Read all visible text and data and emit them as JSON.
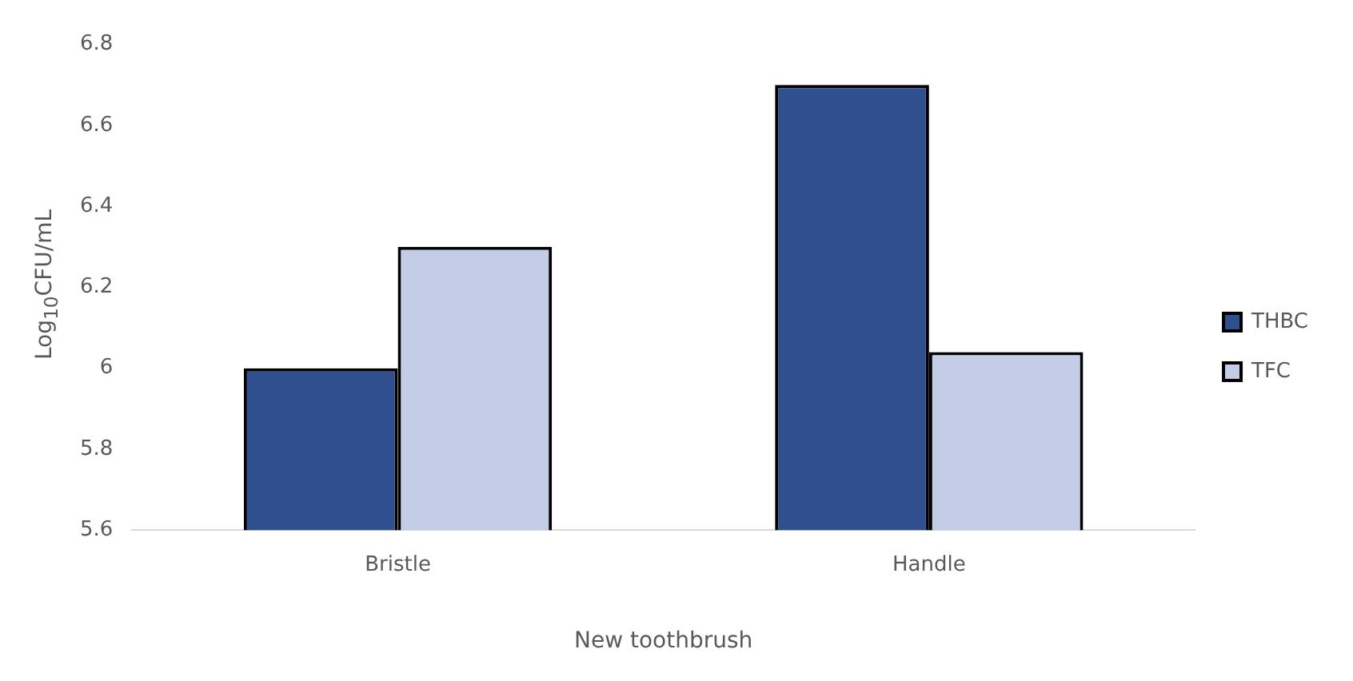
{
  "chart_data": {
    "type": "bar",
    "xlabel": "New toothbrush",
    "ylabel": "Log$_{10}$CFU/mL",
    "categories": [
      "Bristle",
      "Handle"
    ],
    "series": [
      {
        "name": "THBC",
        "color": "#2f4f8f",
        "values": [
          6.0,
          6.7
        ]
      },
      {
        "name": "TFC",
        "color": "#c3cde6",
        "values": [
          6.3,
          6.04
        ]
      }
    ],
    "ylim": [
      5.6,
      6.8
    ],
    "yticks": [
      5.6,
      5.8,
      6,
      6.2,
      6.4,
      6.6,
      6.8
    ],
    "grid": false,
    "legend": "right"
  }
}
